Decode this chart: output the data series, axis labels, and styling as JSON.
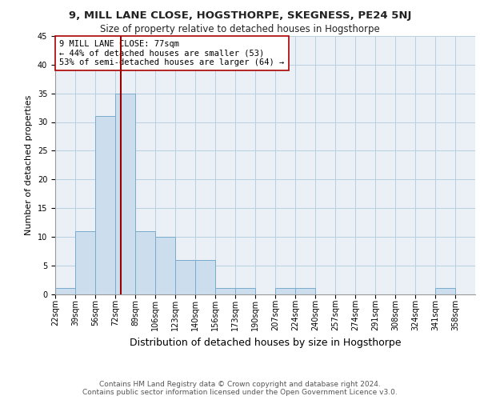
{
  "title1": "9, MILL LANE CLOSE, HOGSTHORPE, SKEGNESS, PE24 5NJ",
  "title2": "Size of property relative to detached houses in Hogsthorpe",
  "xlabel": "Distribution of detached houses by size in Hogsthorpe",
  "ylabel": "Number of detached properties",
  "bin_labels": [
    "22sqm",
    "39sqm",
    "56sqm",
    "72sqm",
    "89sqm",
    "106sqm",
    "123sqm",
    "140sqm",
    "156sqm",
    "173sqm",
    "190sqm",
    "207sqm",
    "224sqm",
    "240sqm",
    "257sqm",
    "274sqm",
    "291sqm",
    "308sqm",
    "324sqm",
    "341sqm",
    "358sqm"
  ],
  "bar_values": [
    1,
    11,
    31,
    35,
    11,
    10,
    6,
    6,
    1,
    1,
    0,
    1,
    1,
    0,
    0,
    0,
    0,
    0,
    0,
    1,
    0
  ],
  "bar_color": "#ccdded",
  "bar_edgecolor": "#7aabcc",
  "subject_value": 77,
  "subject_label": "9 MILL LANE CLOSE: 77sqm",
  "annotation_line1": "← 44% of detached houses are smaller (53)",
  "annotation_line2": "53% of semi-detached houses are larger (64) →",
  "vline_color": "#990000",
  "annotation_box_edgecolor": "#aa0000",
  "ylim": [
    0,
    45
  ],
  "grid_color": "#b8cfe0",
  "background_color": "#eaf0f6",
  "footer1": "Contains HM Land Registry data © Crown copyright and database right 2024.",
  "footer2": "Contains public sector information licensed under the Open Government Licence v3.0.",
  "title1_fontsize": 9.5,
  "title2_fontsize": 8.5,
  "xlabel_fontsize": 9,
  "ylabel_fontsize": 8,
  "tick_fontsize": 7,
  "annotation_fontsize": 7.5,
  "footer_fontsize": 6.5
}
